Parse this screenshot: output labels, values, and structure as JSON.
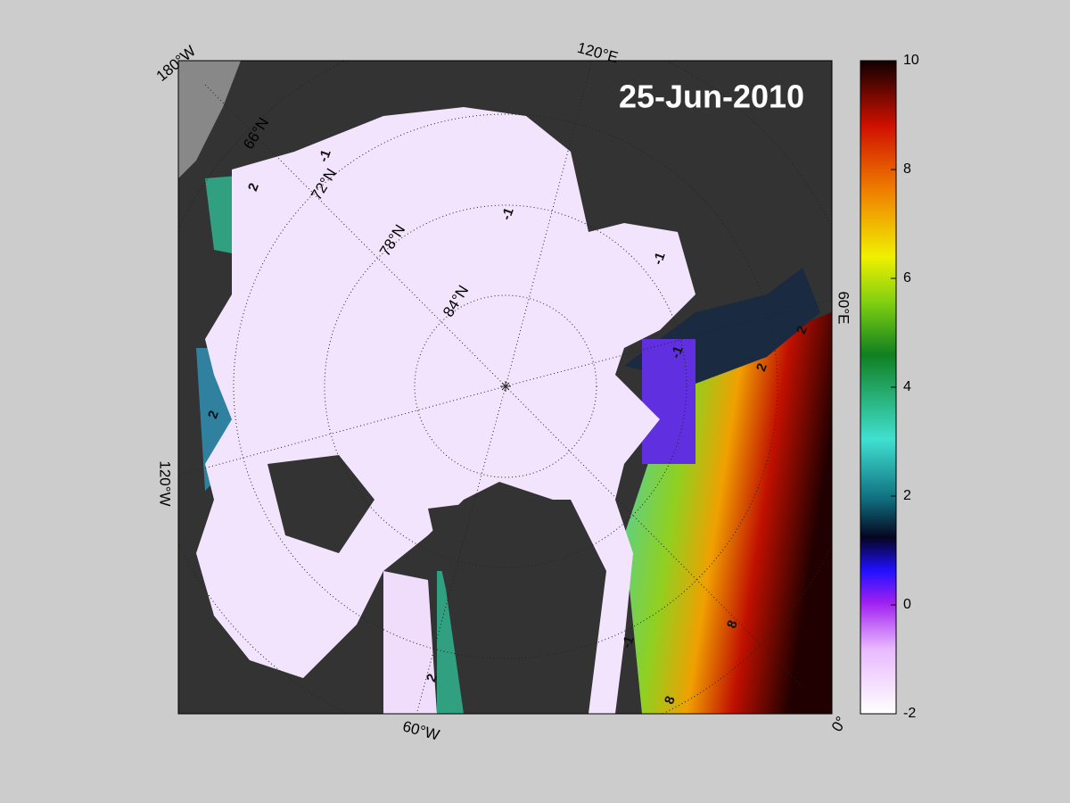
{
  "title": "25-Jun-2010",
  "longitude_labels": [
    "180°W",
    "120°E",
    "60°E",
    "0°",
    "60°W",
    "120°W"
  ],
  "latitude_labels": [
    "66°N",
    "72°N",
    "78°N",
    "84°N"
  ],
  "contour_labels": [
    -1,
    -1,
    -1,
    -1,
    -1,
    2,
    2,
    2,
    2,
    2,
    8,
    8
  ],
  "colorbar": {
    "range": [
      -2,
      10
    ],
    "ticks": [
      -2,
      0,
      2,
      4,
      6,
      8,
      10
    ]
  }
}
